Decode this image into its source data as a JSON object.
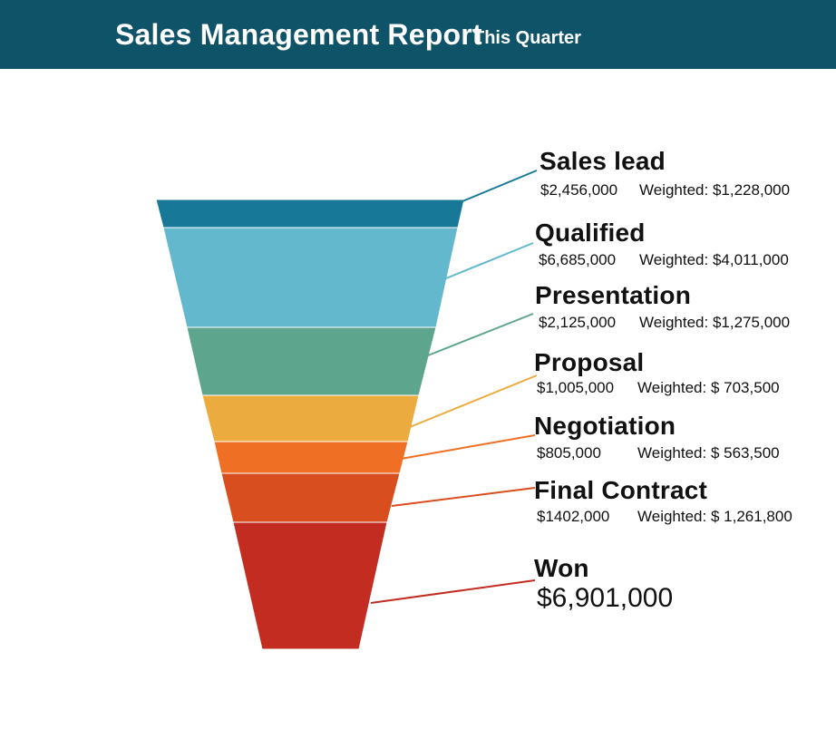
{
  "header": {
    "title": "Sales Management Report",
    "subtitle": "This Quarter"
  },
  "colors": {
    "header_bg": "#0e5368",
    "stage_colors": [
      "#177898",
      "#63b8ce",
      "#5ea58e",
      "#ecab3e",
      "#ef7025",
      "#d94e1f",
      "#c22c21"
    ]
  },
  "chart_data": {
    "type": "funnel",
    "title": "Sales Management Report",
    "subtitle": "This Quarter",
    "stages": [
      {
        "name": "Sales lead",
        "value": "$2,456,000",
        "weighted_label": "Weighted:",
        "weighted": "$1,228,000"
      },
      {
        "name": "Qualified",
        "value": "$6,685,000",
        "weighted_label": "Weighted:",
        "weighted": "$4,011,000"
      },
      {
        "name": "Presentation",
        "value": "$2,125,000",
        "weighted_label": "Weighted:",
        "weighted": "$1,275,000"
      },
      {
        "name": "Proposal",
        "value": "$1,005,000",
        "weighted_label": "Weighted:",
        "weighted": "$ 703,500"
      },
      {
        "name": "Negotiation",
        "value": "$805,000",
        "weighted_label": "Weighted:",
        "weighted": "$ 563,500"
      },
      {
        "name": "Final Contract",
        "value": "$1402,000",
        "weighted_label": "Weighted:",
        "weighted": "$ 1,261,800"
      },
      {
        "name": "Won",
        "value": "$6,901,000"
      }
    ]
  }
}
